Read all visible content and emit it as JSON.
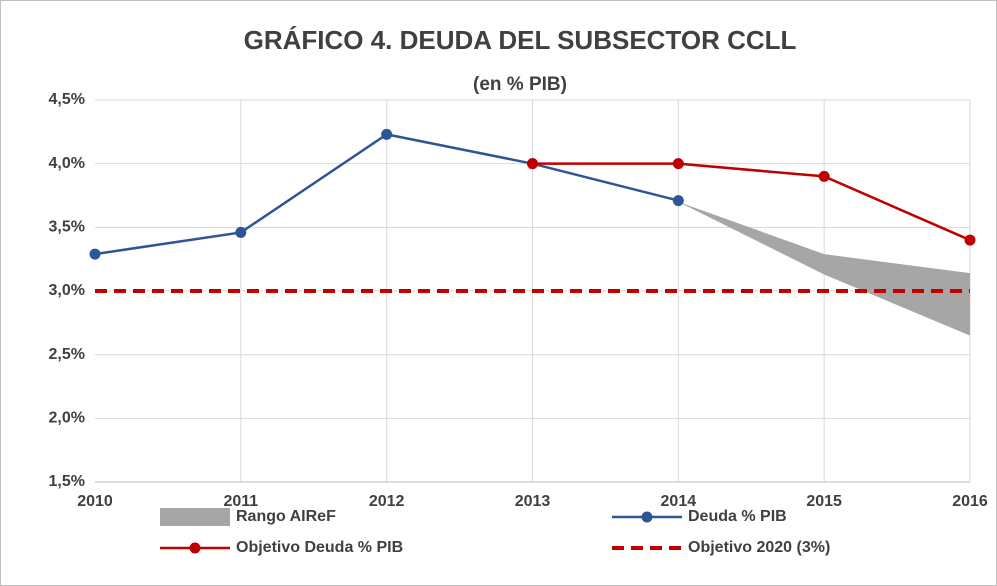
{
  "chart_data": {
    "type": "line",
    "title": "GRÁFICO 4. DEUDA DEL SUBSECTOR CCLL",
    "subtitle": "(en % PIB)",
    "categories": [
      "2010",
      "2011",
      "2012",
      "2013",
      "2014",
      "2015",
      "2016"
    ],
    "ylim": [
      1.5,
      4.5
    ],
    "yticks": [
      {
        "value": 1.5,
        "label": "1,5%"
      },
      {
        "value": 2.0,
        "label": "2,0%"
      },
      {
        "value": 2.5,
        "label": "2,5%"
      },
      {
        "value": 3.0,
        "label": "3,0%"
      },
      {
        "value": 3.5,
        "label": "3,5%"
      },
      {
        "value": 4.0,
        "label": "4,0%"
      },
      {
        "value": 4.5,
        "label": "4,5%"
      }
    ],
    "grid": true,
    "band": {
      "name": "Rango AIReF",
      "color": "#a6a6a6",
      "high": [
        null,
        null,
        null,
        null,
        3.7,
        3.29,
        3.14
      ],
      "low": [
        null,
        null,
        null,
        null,
        3.7,
        3.13,
        2.65
      ]
    },
    "series": [
      {
        "name": "Deuda % PIB",
        "color": "#2e5597",
        "markers": true,
        "dashed": false,
        "values": [
          3.29,
          3.46,
          4.23,
          4.0,
          3.71,
          null,
          null
        ]
      },
      {
        "name": "Objetivo Deuda % PIB",
        "color": "#c00000",
        "markers": true,
        "dashed": false,
        "values": [
          null,
          null,
          null,
          4.0,
          4.0,
          3.9,
          3.4
        ]
      },
      {
        "name": "Objetivo 2020 (3%)",
        "color": "#c00000",
        "markers": false,
        "dashed": true,
        "values": [
          3.0,
          3.0,
          3.0,
          3.0,
          3.0,
          3.0,
          3.0
        ]
      }
    ]
  }
}
